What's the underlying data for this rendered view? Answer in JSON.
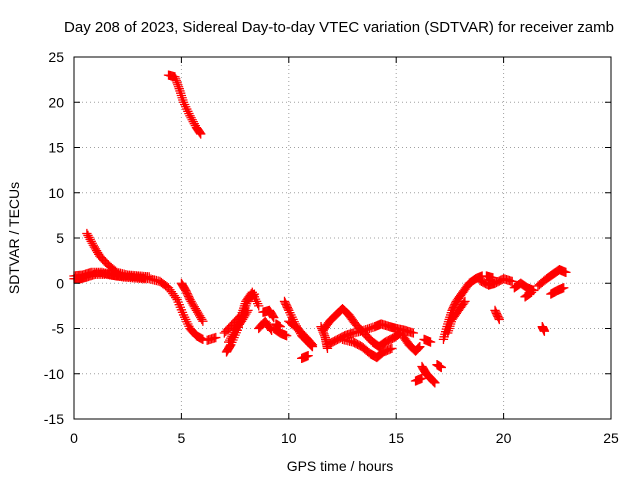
{
  "chart_data": {
    "type": "scatter",
    "title": "Day 208 of 2023, Sidereal Day-to-day VTEC variation (SDTVAR) for receiver zamb",
    "xlabel": "GPS time / hours",
    "ylabel": "SDTVAR / TECUs",
    "xlim": [
      0,
      25
    ],
    "ylim": [
      -15,
      25
    ],
    "xticks": [
      0,
      5,
      10,
      15,
      20,
      25
    ],
    "yticks": [
      -15,
      -10,
      -5,
      0,
      5,
      10,
      15,
      20,
      25
    ],
    "grid": true,
    "marker": "+",
    "series": [
      {
        "name": "SDTVAR",
        "color": "#ff0000",
        "segments": [
          [
            [
              0.0,
              0.5
            ],
            [
              0.3,
              0.5
            ],
            [
              0.6,
              0.7
            ],
            [
              1.0,
              1.0
            ],
            [
              1.5,
              1.0
            ],
            [
              2.0,
              0.8
            ],
            [
              2.5,
              0.8
            ],
            [
              3.0,
              0.7
            ],
            [
              3.5,
              0.5
            ],
            [
              4.0,
              0.2
            ],
            [
              4.4,
              -0.5
            ],
            [
              4.8,
              -1.8
            ],
            [
              5.1,
              -3.5
            ],
            [
              5.4,
              -5.0
            ],
            [
              5.7,
              -5.8
            ],
            [
              6.0,
              -6.2
            ]
          ],
          [
            [
              0.0,
              0.8
            ],
            [
              0.4,
              0.9
            ],
            [
              0.8,
              1.2
            ],
            [
              1.3,
              1.2
            ],
            [
              1.8,
              0.9
            ],
            [
              2.3,
              0.7
            ],
            [
              2.8,
              0.6
            ],
            [
              3.3,
              0.5
            ]
          ],
          [
            [
              0.6,
              5.5
            ],
            [
              0.9,
              4.2
            ],
            [
              1.2,
              3.0
            ],
            [
              1.6,
              2.0
            ],
            [
              2.0,
              1.2
            ],
            [
              2.5,
              0.9
            ],
            [
              3.0,
              0.8
            ],
            [
              3.5,
              0.7
            ]
          ],
          [
            [
              4.4,
              23.0
            ],
            [
              4.7,
              22.8
            ],
            [
              4.9,
              21.5
            ],
            [
              5.1,
              20.0
            ],
            [
              5.4,
              18.5
            ],
            [
              5.7,
              17.2
            ],
            [
              5.9,
              16.5
            ]
          ],
          [
            [
              5.0,
              0.0
            ],
            [
              5.2,
              -0.8
            ],
            [
              5.4,
              -1.8
            ],
            [
              5.7,
              -3.0
            ],
            [
              6.0,
              -4.2
            ]
          ],
          [
            [
              6.2,
              -6.3
            ],
            [
              6.6,
              -6.0
            ]
          ],
          [
            [
              7.1,
              -7.6
            ],
            [
              7.3,
              -6.8
            ],
            [
              7.6,
              -5.2
            ],
            [
              7.9,
              -3.2
            ],
            [
              8.1,
              -1.8
            ],
            [
              8.4,
              -1.2
            ]
          ],
          [
            [
              7.0,
              -5.5
            ],
            [
              7.4,
              -4.5
            ],
            [
              7.8,
              -3.5
            ],
            [
              8.0,
              -2.0
            ],
            [
              8.3,
              -1.0
            ],
            [
              8.6,
              -2.5
            ]
          ],
          [
            [
              7.2,
              -6.5
            ],
            [
              7.5,
              -5.2
            ],
            [
              7.8,
              -4.2
            ],
            [
              8.1,
              -3.0
            ]
          ],
          [
            [
              8.6,
              -5.0
            ],
            [
              8.9,
              -4.2
            ],
            [
              9.2,
              -5.2
            ]
          ],
          [
            [
              8.8,
              -3.2
            ],
            [
              9.1,
              -3.0
            ],
            [
              9.3,
              -3.8
            ]
          ],
          [
            [
              9.3,
              -5.0
            ],
            [
              9.6,
              -5.5
            ],
            [
              9.9,
              -5.8
            ]
          ],
          [
            [
              9.4,
              -4.5
            ],
            [
              9.6,
              -4.8
            ]
          ],
          [
            [
              9.8,
              -2.0
            ],
            [
              10.0,
              -3.0
            ],
            [
              10.3,
              -4.5
            ],
            [
              10.6,
              -5.8
            ],
            [
              10.9,
              -6.5
            ],
            [
              11.1,
              -7.0
            ]
          ],
          [
            [
              10.0,
              -4.2
            ],
            [
              10.4,
              -5.0
            ],
            [
              10.8,
              -6.0
            ],
            [
              11.1,
              -6.8
            ]
          ],
          [
            [
              10.6,
              -8.3
            ],
            [
              10.9,
              -8.0
            ]
          ],
          [
            [
              11.5,
              -4.8
            ],
            [
              11.7,
              -6.0
            ],
            [
              11.8,
              -7.2
            ]
          ],
          [
            [
              11.6,
              -5.2
            ],
            [
              11.9,
              -4.2
            ],
            [
              12.2,
              -3.5
            ],
            [
              12.5,
              -2.8
            ],
            [
              12.8,
              -3.5
            ],
            [
              13.1,
              -4.5
            ],
            [
              13.5,
              -5.5
            ],
            [
              13.9,
              -6.5
            ],
            [
              14.2,
              -7.0
            ],
            [
              14.5,
              -6.5
            ],
            [
              14.9,
              -6.0
            ],
            [
              15.2,
              -5.5
            ]
          ],
          [
            [
              11.8,
              -6.8
            ],
            [
              12.2,
              -6.3
            ],
            [
              12.6,
              -5.8
            ],
            [
              13.0,
              -5.5
            ],
            [
              13.5,
              -5.2
            ],
            [
              14.0,
              -4.8
            ],
            [
              14.3,
              -4.5
            ],
            [
              14.7,
              -4.8
            ],
            [
              15.0,
              -5.0
            ],
            [
              15.4,
              -5.2
            ],
            [
              15.8,
              -5.5
            ]
          ],
          [
            [
              12.5,
              -6.2
            ],
            [
              13.0,
              -6.5
            ],
            [
              13.4,
              -7.0
            ],
            [
              13.8,
              -7.8
            ],
            [
              14.1,
              -8.2
            ],
            [
              14.4,
              -7.6
            ],
            [
              14.8,
              -7.2
            ]
          ],
          [
            [
              15.3,
              -5.8
            ],
            [
              15.6,
              -6.8
            ],
            [
              15.9,
              -7.5
            ],
            [
              16.1,
              -7.0
            ]
          ],
          [
            [
              16.2,
              -9.2
            ],
            [
              16.4,
              -10.0
            ],
            [
              16.6,
              -10.5
            ],
            [
              16.8,
              -11.0
            ]
          ],
          [
            [
              15.9,
              -10.8
            ],
            [
              16.2,
              -10.5
            ]
          ],
          [
            [
              16.3,
              -6.2
            ],
            [
              16.6,
              -6.5
            ]
          ],
          [
            [
              16.9,
              -9.0
            ],
            [
              17.1,
              -9.3
            ]
          ],
          [
            [
              17.2,
              -6.2
            ],
            [
              17.4,
              -4.5
            ],
            [
              17.6,
              -3.0
            ],
            [
              17.8,
              -2.0
            ],
            [
              18.1,
              -1.0
            ],
            [
              18.4,
              0.0
            ],
            [
              18.7,
              0.5
            ],
            [
              19.0,
              0.8
            ]
          ],
          [
            [
              17.4,
              -5.5
            ],
            [
              17.6,
              -4.0
            ],
            [
              17.9,
              -3.0
            ],
            [
              18.2,
              -2.0
            ]
          ],
          [
            [
              18.9,
              0.3
            ],
            [
              19.3,
              -0.2
            ],
            [
              19.6,
              0.0
            ],
            [
              20.0,
              0.5
            ],
            [
              20.4,
              0.2
            ]
          ],
          [
            [
              19.2,
              0.8
            ],
            [
              19.5,
              0.6
            ]
          ],
          [
            [
              19.6,
              -3.0
            ],
            [
              19.8,
              -4.0
            ]
          ],
          [
            [
              20.5,
              -0.5
            ],
            [
              20.8,
              0.0
            ],
            [
              21.1,
              -0.5
            ],
            [
              21.4,
              -0.8
            ]
          ],
          [
            [
              21.0,
              -1.5
            ],
            [
              21.3,
              -1.0
            ]
          ],
          [
            [
              21.6,
              -0.3
            ],
            [
              22.0,
              0.5
            ],
            [
              22.3,
              1.0
            ],
            [
              22.6,
              1.5
            ],
            [
              22.9,
              1.2
            ]
          ],
          [
            [
              21.8,
              -4.8
            ],
            [
              21.9,
              -5.3
            ]
          ],
          [
            [
              22.2,
              -1.2
            ],
            [
              22.5,
              -0.8
            ],
            [
              22.8,
              -0.5
            ]
          ]
        ]
      }
    ]
  }
}
